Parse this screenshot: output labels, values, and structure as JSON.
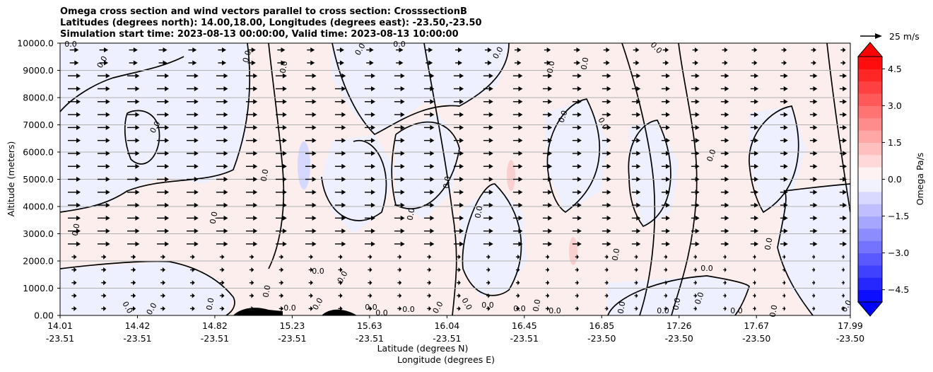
{
  "chart_data": {
    "type": "heatmap",
    "title_lines": [
      "Omega cross section and wind vectors parallel to cross section: CrosssectionB",
      "Latitudes (degrees north): 14.00,18.00, Longitudes (degrees east): -23.50,-23.50",
      "Simulation start time: 2023-08-13 00:00:00, Valid time: 2023-08-13 10:00:00"
    ],
    "ylabel": "Altitude (meters)",
    "xlabel_lines": [
      "Latitude (degrees N)",
      "Longitude (degrees E)"
    ],
    "ylim": [
      0,
      10000
    ],
    "y_ticks": [
      "0.00",
      "1000.0",
      "2000.0",
      "3000.0",
      "4000.0",
      "5000.0",
      "6000.0",
      "7000.0",
      "8000.0",
      "9000.0",
      "10000.0"
    ],
    "y_tick_values": [
      0,
      1000,
      2000,
      3000,
      4000,
      5000,
      6000,
      7000,
      8000,
      9000,
      10000
    ],
    "x_ticks": [
      {
        "lat": "14.01",
        "lon": "-23.51"
      },
      {
        "lat": "14.42",
        "lon": "-23.51"
      },
      {
        "lat": "14.82",
        "lon": "-23.51"
      },
      {
        "lat": "15.23",
        "lon": "-23.51"
      },
      {
        "lat": "15.63",
        "lon": "-23.51"
      },
      {
        "lat": "16.04",
        "lon": "-23.51"
      },
      {
        "lat": "16.45",
        "lon": "-23.51"
      },
      {
        "lat": "16.85",
        "lon": "-23.50"
      },
      {
        "lat": "17.26",
        "lon": "-23.50"
      },
      {
        "lat": "17.67",
        "lon": "-23.50"
      },
      {
        "lat": "17.99",
        "lon": "-23.50"
      }
    ],
    "xlim": [
      14.01,
      17.99
    ],
    "grid": "horizontal",
    "colorbar": {
      "label": "Omega Pa/s",
      "ticks": [
        "4.5",
        "3.0",
        "1.5",
        "0.0",
        "−1.5",
        "−3.0",
        "−4.5"
      ],
      "tick_values": [
        4.5,
        3.0,
        1.5,
        0.0,
        -1.5,
        -3.0,
        -4.5
      ],
      "range": [
        -5,
        5
      ],
      "extend": "both",
      "colormap": "bwr"
    },
    "contour_label": "0.0",
    "quiver_key": "25 m/s",
    "positive_color": "#fdeeee",
    "negative_color": "#eeefff"
  }
}
